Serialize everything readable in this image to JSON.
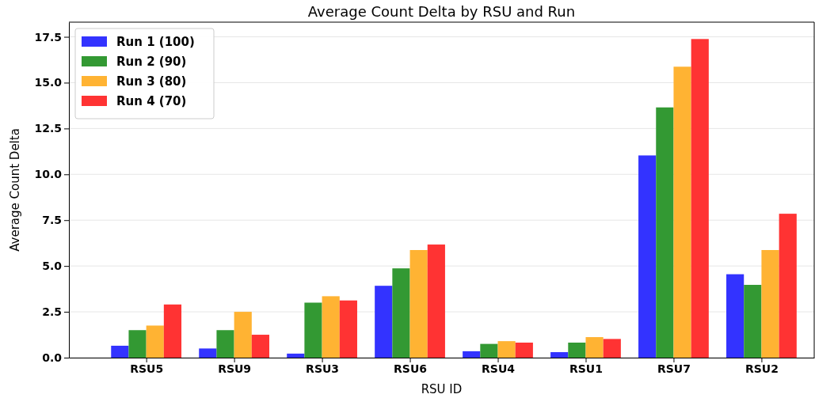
{
  "chart_data": {
    "type": "bar",
    "title": "Average Count Delta by RSU and Run",
    "xlabel": "RSU ID",
    "ylabel": "Average Count Delta",
    "categories": [
      "RSU5",
      "RSU9",
      "RSU3",
      "RSU6",
      "RSU4",
      "RSU1",
      "RSU7",
      "RSU2"
    ],
    "series": [
      {
        "name": "Run 1 (100)",
        "color": "#3333ff",
        "values": [
          0.65,
          0.5,
          0.22,
          3.92,
          0.35,
          0.3,
          11.03,
          4.55
        ]
      },
      {
        "name": "Run 2 (90)",
        "color": "#339933",
        "values": [
          1.5,
          1.5,
          3.0,
          4.87,
          0.75,
          0.82,
          13.65,
          3.97
        ]
      },
      {
        "name": "Run 3 (80)",
        "color": "#ffb333",
        "values": [
          1.75,
          2.5,
          3.35,
          5.87,
          0.9,
          1.12,
          15.87,
          5.87
        ]
      },
      {
        "name": "Run 4 (70)",
        "color": "#ff3333",
        "values": [
          2.9,
          1.25,
          3.12,
          6.17,
          0.82,
          1.02,
          17.38,
          7.85
        ]
      }
    ],
    "ylim": [
      0,
      18.3
    ],
    "yticks": [
      {
        "value": 0,
        "label": "0.0"
      },
      {
        "value": 2.5,
        "label": "2.5"
      },
      {
        "value": 5,
        "label": "5.0"
      },
      {
        "value": 7.5,
        "label": "7.5"
      },
      {
        "value": 10,
        "label": "10.0"
      },
      {
        "value": 12.5,
        "label": "12.5"
      },
      {
        "value": 15,
        "label": "15.0"
      },
      {
        "value": 17.5,
        "label": "17.5"
      }
    ],
    "grid": "y",
    "legend": "top left"
  }
}
